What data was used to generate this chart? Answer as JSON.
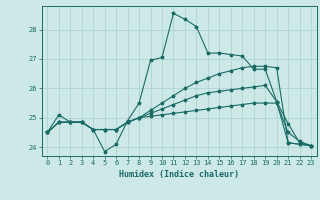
{
  "title": "",
  "xlabel": "Humidex (Indice chaleur)",
  "xlim": [
    -0.5,
    23.5
  ],
  "ylim": [
    23.7,
    28.8
  ],
  "yticks": [
    24,
    25,
    26,
    27,
    28
  ],
  "xticks": [
    0,
    1,
    2,
    3,
    4,
    5,
    6,
    7,
    8,
    9,
    10,
    11,
    12,
    13,
    14,
    15,
    16,
    17,
    18,
    19,
    20,
    21,
    22,
    23
  ],
  "bg_color": "#cce9e7",
  "grid_color": "#aacfcc",
  "line_color": "#1a6b65",
  "lines": [
    {
      "x": [
        0,
        1,
        2,
        3,
        4,
        5,
        6,
        7,
        8,
        9,
        10,
        11,
        12,
        13,
        14,
        15,
        16,
        17,
        18,
        19,
        20,
        21,
        22,
        23
      ],
      "y": [
        24.5,
        25.1,
        24.85,
        24.85,
        24.6,
        23.85,
        24.1,
        24.9,
        25.5,
        26.95,
        27.05,
        28.55,
        28.35,
        28.1,
        27.2,
        27.2,
        27.15,
        27.1,
        26.65,
        26.65,
        25.55,
        24.15,
        24.1,
        24.05
      ]
    },
    {
      "x": [
        0,
        1,
        2,
        3,
        4,
        5,
        6,
        7,
        8,
        9,
        10,
        11,
        12,
        13,
        14,
        15,
        16,
        17,
        18,
        19,
        20,
        21,
        22,
        23
      ],
      "y": [
        24.5,
        24.85,
        24.85,
        24.85,
        24.6,
        24.6,
        24.6,
        24.85,
        25.0,
        25.25,
        25.5,
        25.75,
        26.0,
        26.2,
        26.35,
        26.5,
        26.6,
        26.7,
        26.75,
        26.75,
        26.7,
        24.15,
        24.1,
        24.05
      ]
    },
    {
      "x": [
        0,
        1,
        2,
        3,
        4,
        5,
        6,
        7,
        8,
        9,
        10,
        11,
        12,
        13,
        14,
        15,
        16,
        17,
        18,
        19,
        20,
        21,
        22,
        23
      ],
      "y": [
        24.5,
        24.85,
        24.85,
        24.85,
        24.6,
        24.6,
        24.6,
        24.85,
        25.0,
        25.15,
        25.3,
        25.45,
        25.6,
        25.75,
        25.85,
        25.9,
        25.95,
        26.0,
        26.05,
        26.1,
        25.55,
        24.8,
        24.15,
        24.05
      ]
    },
    {
      "x": [
        0,
        1,
        2,
        3,
        4,
        5,
        6,
        7,
        8,
        9,
        10,
        11,
        12,
        13,
        14,
        15,
        16,
        17,
        18,
        19,
        20,
        21,
        22,
        23
      ],
      "y": [
        24.5,
        24.85,
        24.85,
        24.85,
        24.6,
        24.6,
        24.6,
        24.85,
        25.0,
        25.05,
        25.1,
        25.15,
        25.2,
        25.25,
        25.3,
        25.35,
        25.4,
        25.45,
        25.5,
        25.5,
        25.5,
        24.5,
        24.2,
        24.05
      ]
    }
  ]
}
